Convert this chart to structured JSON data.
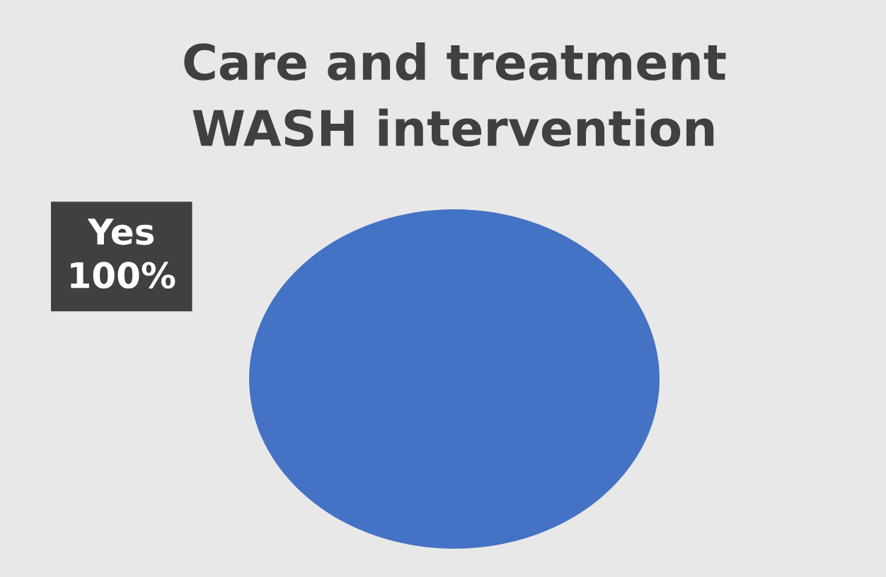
{
  "chart_data": {
    "type": "pie",
    "title": "Care and treatment\nWASH intervention",
    "categories": [
      "Yes"
    ],
    "values": [
      100
    ],
    "colors": [
      "#4472c4"
    ],
    "value_labels": [
      "100%"
    ]
  }
}
